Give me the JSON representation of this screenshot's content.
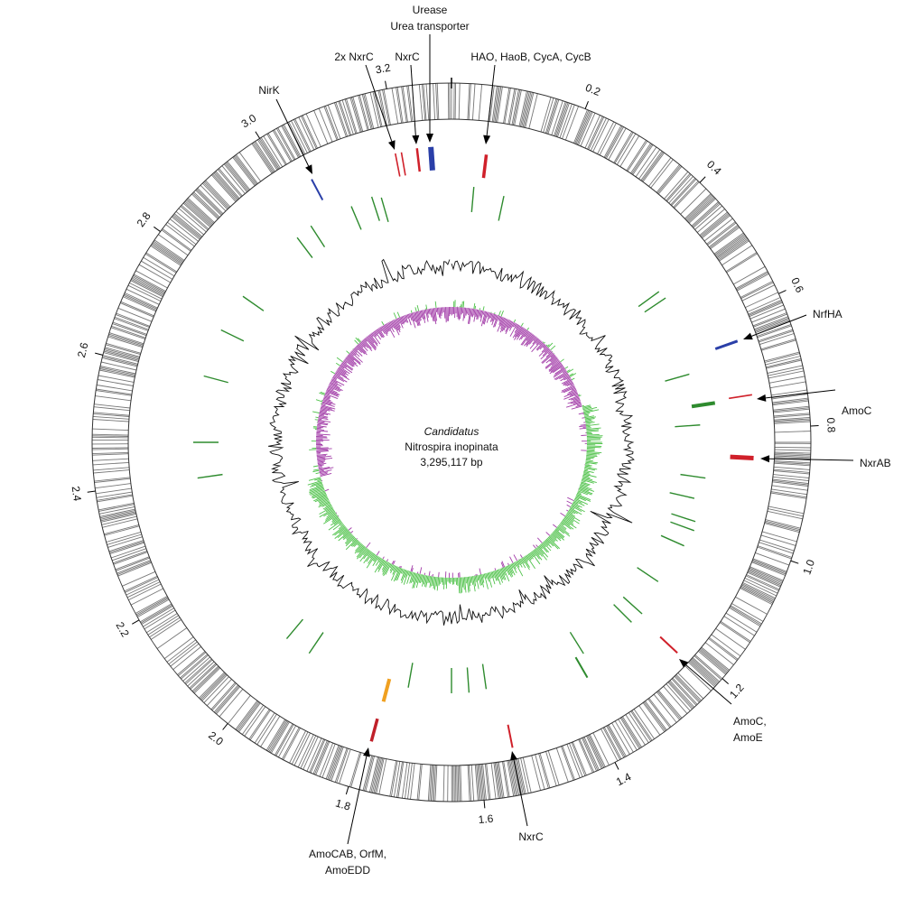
{
  "center": {
    "genus": "Candidatus",
    "species": "Nitrospira inopinata",
    "genome_size": {
      "value": 3295117,
      "label": "3,295,117 bp"
    }
  },
  "scale_ticks": [
    0.2,
    0.4,
    0.6,
    0.8,
    {
      "value": 1,
      "label": "1.0"
    },
    1.2,
    1.4,
    1.6,
    1.8,
    {
      "value": 2,
      "label": "2.0"
    },
    2.2,
    2.4,
    2.6,
    2.8,
    {
      "value": 3,
      "label": "3.0"
    },
    3.2
  ],
  "annotations": [
    {
      "lines": [
        "NirK"
      ]
    },
    {
      "lines": [
        "2x NxrC"
      ]
    },
    {
      "lines": [
        "NxrC"
      ]
    },
    {
      "lines": [
        "Urease",
        "Urea transporter"
      ]
    },
    {
      "lines": [
        "HAO, HaoB, CycA, CycB"
      ]
    },
    {
      "lines": [
        "NrfHA"
      ]
    },
    {
      "lines": [
        "AmoC"
      ]
    },
    {
      "lines": [
        "NxrAB"
      ]
    },
    {
      "lines": [
        "AmoC,",
        "AmoE"
      ]
    },
    {
      "lines": [
        "NxrC"
      ]
    },
    {
      "lines": [
        "AmoCAB, OrfM,",
        "AmoEDD"
      ]
    }
  ]
}
